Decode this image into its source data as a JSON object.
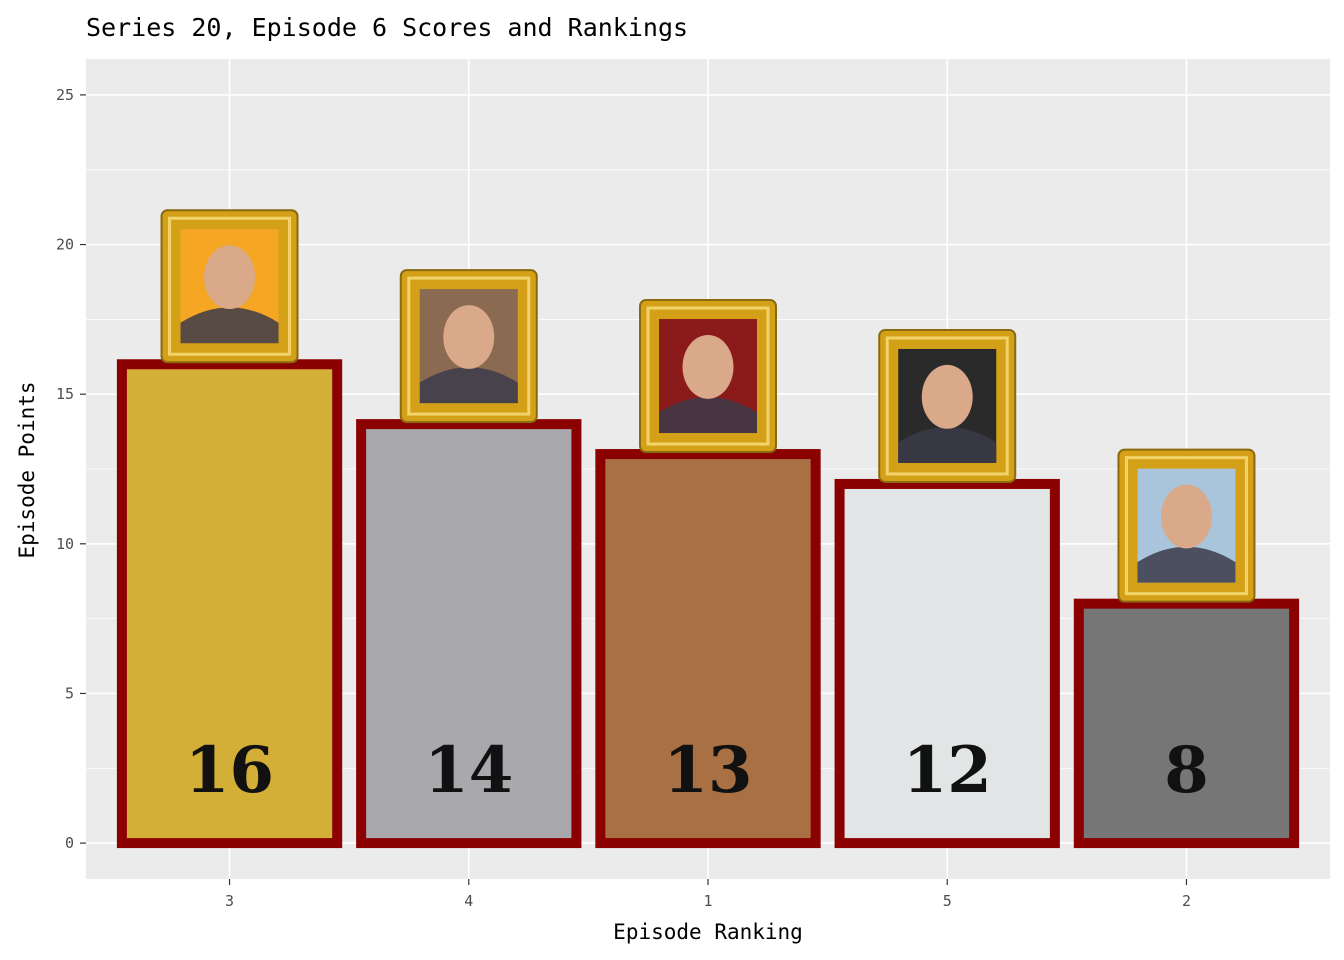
{
  "chart_data": {
    "type": "bar",
    "title": "Series 20, Episode 6 Scores and Rankings",
    "xlabel": "Episode Ranking",
    "ylabel": "Episode Points",
    "categories": [
      "3",
      "4",
      "1",
      "5",
      "2"
    ],
    "values": [
      16,
      14,
      13,
      12,
      8
    ],
    "value_labels": [
      "16",
      "14",
      "13",
      "12",
      "8"
    ],
    "y_ticks": [
      "0",
      "5",
      "10",
      "15",
      "20",
      "25"
    ],
    "ylim": [
      -1.2,
      26.2
    ],
    "grid": true,
    "legend": "none",
    "bar_colors": [
      "#D4AF37",
      "#A8A8AD",
      "#A87043",
      "#E1E5E5",
      "#767676"
    ],
    "bar_outline_color": "#8B0000",
    "panel_background": "#EBEBEB",
    "gridline_color": "#FFFFFF",
    "portrait_backgrounds": [
      "#F5A623",
      "#8A6A50",
      "#8B1A1A",
      "#2A2A2A",
      "#A9C4DB"
    ],
    "frame_color": "#D4A017"
  }
}
